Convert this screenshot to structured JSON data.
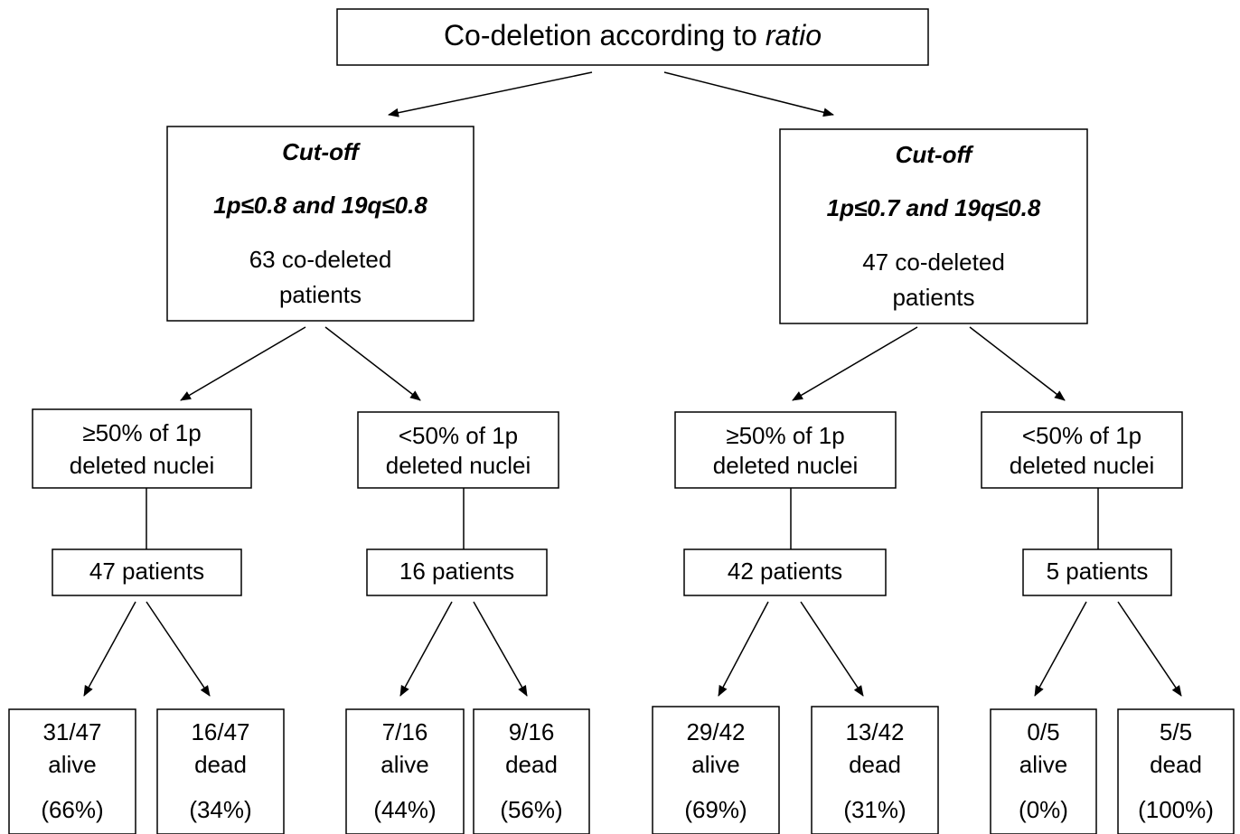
{
  "root": {
    "text": "Co-deletion according to",
    "emphasis": "ratio"
  },
  "nodes": [
    {
      "lines": [
        "Cut-off",
        "1p≤0.8 and 19q≤0.8",
        "63 co-deleted",
        "patients"
      ]
    },
    {
      "lines": [
        "Cut-off",
        "1p≤0.7 and 19q≤0.8",
        "47 co-deleted",
        "patients"
      ]
    },
    {
      "lines": [
        "≥50% of 1p",
        "deleted nuclei"
      ]
    },
    {
      "lines": [
        "<50% of 1p",
        "deleted nuclei"
      ]
    },
    {
      "lines": [
        "≥50% of 1p",
        "deleted nuclei"
      ]
    },
    {
      "lines": [
        "<50% of 1p",
        "deleted nuclei"
      ]
    },
    {
      "lines": [
        "47 patients"
      ]
    },
    {
      "lines": [
        "16 patients"
      ]
    },
    {
      "lines": [
        "42 patients"
      ]
    },
    {
      "lines": [
        "5 patients"
      ]
    },
    {
      "lines": [
        "31/47",
        "alive",
        "(66%)"
      ]
    },
    {
      "lines": [
        "16/47",
        "dead",
        "(34%)"
      ]
    },
    {
      "lines": [
        "7/16",
        "alive",
        "(44%)"
      ]
    },
    {
      "lines": [
        "9/16",
        "dead",
        "(56%)"
      ]
    },
    {
      "lines": [
        "29/42",
        "alive",
        "(69%)"
      ]
    },
    {
      "lines": [
        "13/42",
        "dead",
        "(31%)"
      ]
    },
    {
      "lines": [
        "0/5",
        "alive",
        "(0%)"
      ]
    },
    {
      "lines": [
        "5/5",
        "dead",
        "(100%)"
      ]
    }
  ]
}
